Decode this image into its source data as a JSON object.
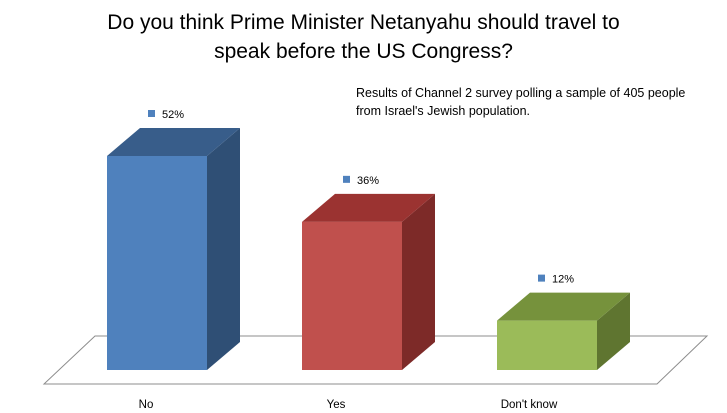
{
  "chart_data": {
    "type": "bar",
    "title_lines": [
      "Do you think Prime Minister Netanyahu should travel to",
      "speak before the US Congress?"
    ],
    "subtitle_lines": [
      "Results of Channel 2 survey polling a sample of 405 people",
      "from Israel's Jewish population."
    ],
    "categories": [
      "No",
      "Yes",
      "Don't know"
    ],
    "values": [
      52,
      36,
      12
    ],
    "value_labels": [
      "52%",
      "36%",
      "12%"
    ],
    "colors": [
      {
        "front": "#4f81bd",
        "top": "#385d8a",
        "side": "#2f4f75"
      },
      {
        "front": "#c0504d",
        "top": "#9b3331",
        "side": "#7d2a28"
      },
      {
        "front": "#9bbb59",
        "top": "#76923c",
        "side": "#5f7530"
      }
    ],
    "marker_color": "#4f81bd",
    "ylim": [
      0,
      60
    ],
    "grid": false,
    "legend": "none",
    "three_d": true
  }
}
